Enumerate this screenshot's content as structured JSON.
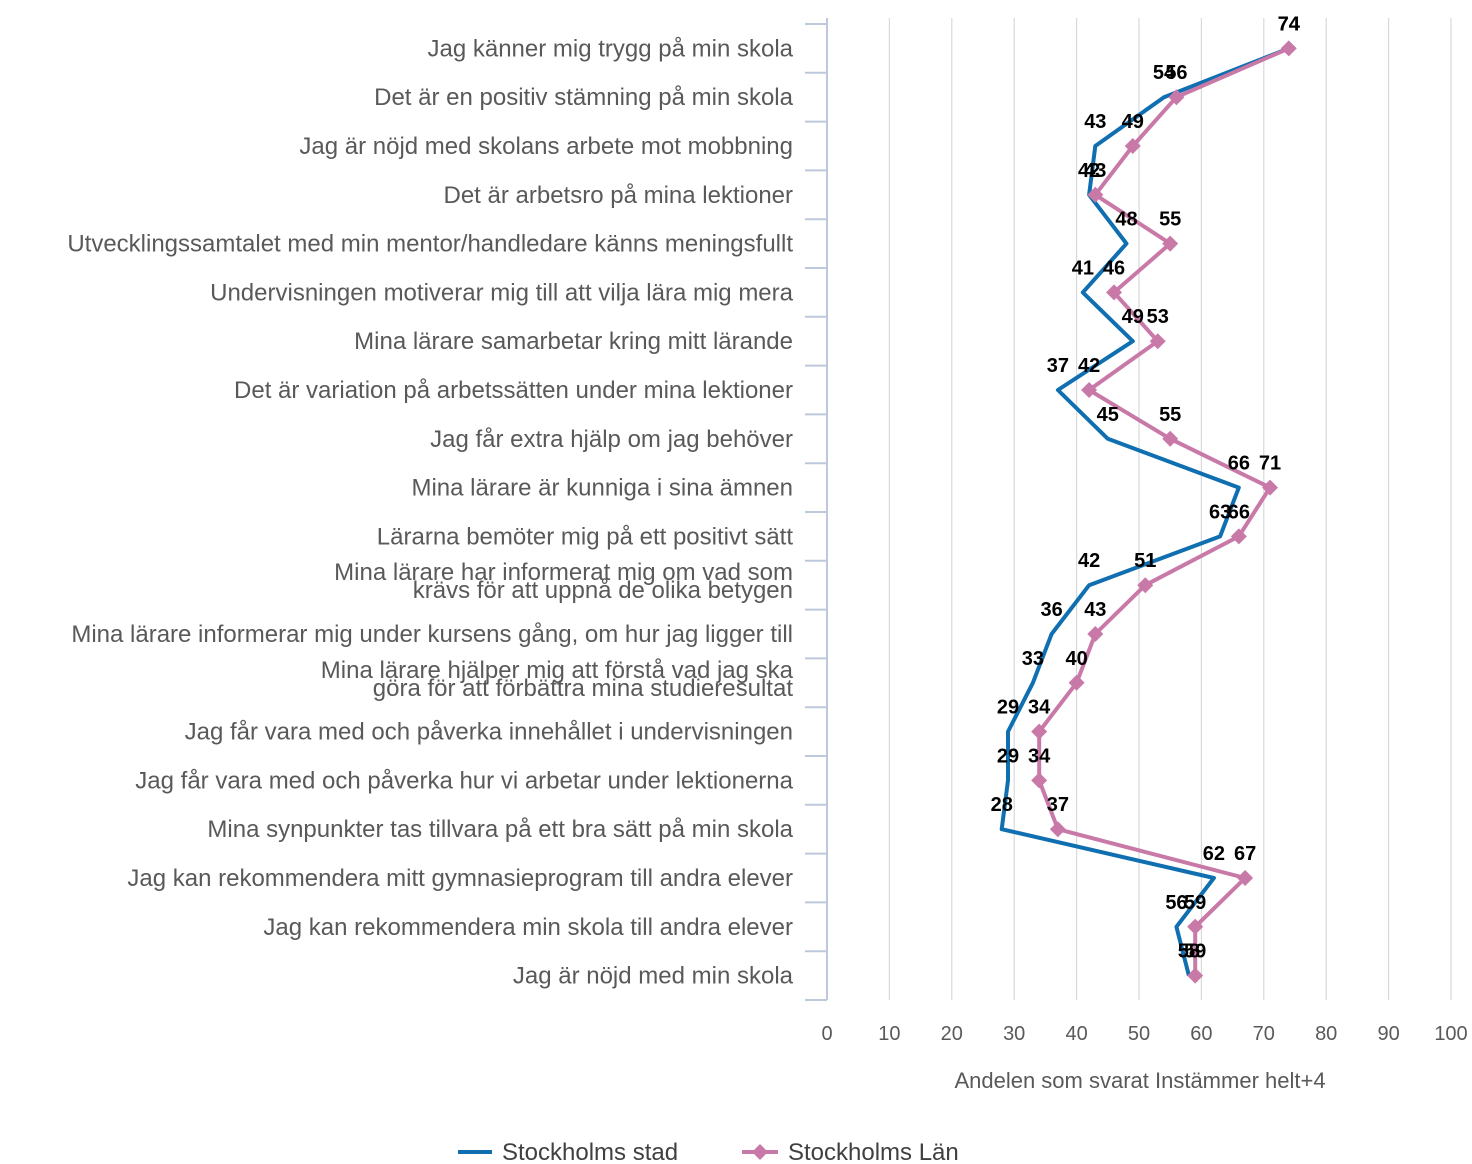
{
  "chart_data": {
    "type": "line",
    "orientation": "horizontal",
    "categories": [
      "Jag känner mig trygg på min skola",
      "Det är en positiv stämning på min skola",
      "Jag är nöjd med skolans arbete mot mobbning",
      "Det är arbetsro på mina lektioner",
      "Utvecklingssamtalet med min mentor/handledare känns meningsfullt",
      "Undervisningen motiverar mig till att vilja lära mig mera",
      "Mina lärare samarbetar kring mitt lärande",
      "Det är variation på arbetssätten under mina lektioner",
      "Jag får extra hjälp om jag behöver",
      "Mina lärare är kunniga i sina ämnen",
      "Lärarna bemöter mig på ett positivt sätt",
      "Mina lärare har informerat mig om vad som krävs för att uppnå de olika betygen",
      "Mina lärare informerar mig under kursens gång, om hur jag ligger till",
      "Mina lärare hjälper mig att förstå vad jag ska göra för att förbättra mina studieresultat",
      "Jag får vara med och påverka innehållet i undervisningen",
      "Jag får vara med och påverka hur vi arbetar under lektionerna",
      "Mina synpunkter tas tillvara på ett bra sätt på min skola",
      "Jag kan rekommendera mitt gymnasieprogram till andra elever",
      "Jag kan rekommendera min skola till andra elever",
      "Jag är nöjd med min skola"
    ],
    "category_lines": [
      [
        "Jag känner mig trygg på min skola"
      ],
      [
        "Det är en positiv stämning på min skola"
      ],
      [
        "Jag är nöjd med skolans arbete mot mobbning"
      ],
      [
        "Det är arbetsro på mina lektioner"
      ],
      [
        "Utvecklingssamtalet med min mentor/handledare känns meningsfullt"
      ],
      [
        "Undervisningen motiverar mig till att vilja lära mig mera"
      ],
      [
        "Mina lärare samarbetar kring mitt lärande"
      ],
      [
        "Det är variation på arbetssätten under mina lektioner"
      ],
      [
        "Jag får extra hjälp om jag behöver"
      ],
      [
        "Mina lärare är kunniga i sina ämnen"
      ],
      [
        "Lärarna bemöter mig på ett positivt sätt"
      ],
      [
        "Mina lärare har informerat mig om vad som",
        "krävs för att uppnå de olika betygen"
      ],
      [
        "Mina lärare informerar mig under kursens gång, om hur jag ligger till"
      ],
      [
        "Mina lärare hjälper mig att förstå vad jag ska",
        "göra för att förbättra mina studieresultat"
      ],
      [
        "Jag får vara med och påverka innehållet i undervisningen"
      ],
      [
        "Jag får vara med och påverka hur vi arbetar under lektionerna"
      ],
      [
        "Mina synpunkter tas tillvara på ett bra sätt på min skola"
      ],
      [
        "Jag kan rekommendera mitt gymnasieprogram till andra elever"
      ],
      [
        "Jag kan rekommendera min skola till andra elever"
      ],
      [
        "Jag är nöjd med min skola"
      ]
    ],
    "series": [
      {
        "name": "Stockholms stad",
        "color": "#0F6FB0",
        "marker": "none",
        "values": [
          74,
          54,
          43,
          42,
          48,
          41,
          49,
          37,
          45,
          66,
          63,
          42,
          36,
          33,
          29,
          29,
          28,
          62,
          56,
          58
        ],
        "labels": [
          "74",
          "54",
          "43",
          "42",
          "48",
          "41",
          "49",
          "37",
          "45",
          "66",
          "63",
          "42",
          "36",
          "33",
          "29",
          "29",
          "28",
          "62",
          "56",
          "58"
        ]
      },
      {
        "name": "Stockholms Län",
        "color": "#C879A8",
        "marker": "diamond",
        "values": [
          74,
          56,
          49,
          43,
          55,
          46,
          53,
          42,
          55,
          71,
          66,
          51,
          43,
          40,
          34,
          34,
          37,
          67,
          59,
          59
        ],
        "labels": [
          "74",
          "56",
          "49",
          "43",
          "55",
          "46",
          "53",
          "42",
          "55",
          "71",
          "66",
          "51",
          "43",
          "40",
          "34",
          "34",
          "37",
          "67",
          "59",
          "59"
        ]
      }
    ],
    "xlabel": "Andelen som svarat Instämmer helt+4",
    "xlim": [
      0,
      100
    ],
    "xticks": [
      "0",
      "10",
      "20",
      "30",
      "40",
      "50",
      "60",
      "70",
      "80",
      "90",
      "100"
    ],
    "grid": "vertical",
    "legend_position": "bottom"
  }
}
